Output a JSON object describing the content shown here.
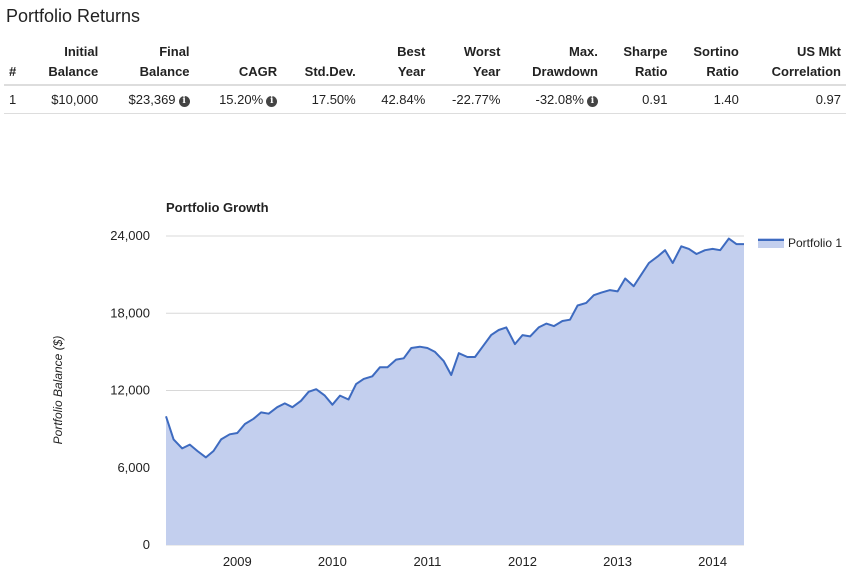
{
  "page_title": "Portfolio Returns",
  "table": {
    "headers": [
      [
        "#"
      ],
      [
        "Initial",
        "Balance"
      ],
      [
        "Final",
        "Balance"
      ],
      [
        "CAGR"
      ],
      [
        "Std.Dev."
      ],
      [
        "Best",
        "Year"
      ],
      [
        "Worst",
        "Year"
      ],
      [
        "Max.",
        "Drawdown"
      ],
      [
        "Sharpe",
        "Ratio"
      ],
      [
        "Sortino",
        "Ratio"
      ],
      [
        "US Mkt",
        "Correlation"
      ]
    ],
    "row": {
      "index": "1",
      "initial_balance": "$10,000",
      "final_balance": "$23,369",
      "cagr": "15.20%",
      "std_dev": "17.50%",
      "best_year": "42.84%",
      "worst_year": "-22.77%",
      "max_drawdown": "-32.08%",
      "sharpe_ratio": "0.91",
      "sortino_ratio": "1.40",
      "us_mkt_correlation": "0.97"
    },
    "info_icon": "info-circle-icon"
  },
  "chart_data": {
    "type": "area",
    "title": "Portfolio Growth",
    "xlabel": "",
    "ylabel": "Portfolio Balance ($)",
    "ylim": [
      0,
      24000
    ],
    "yticks": [
      "0",
      "6,000",
      "12,000",
      "18,000",
      "24,000"
    ],
    "xticks": [
      "2009",
      "2010",
      "2011",
      "2012",
      "2013",
      "2014"
    ],
    "xlim": [
      2008.75,
      2014.83
    ],
    "grid": true,
    "legend_position": "right",
    "fill_color": "#c3cfee",
    "line_color": "#3e6bc0",
    "series": [
      {
        "name": "Portfolio 1",
        "x": [
          2008.75,
          2008.83,
          2008.92,
          2009.0,
          2009.08,
          2009.17,
          2009.25,
          2009.33,
          2009.42,
          2009.5,
          2009.58,
          2009.67,
          2009.75,
          2009.83,
          2009.92,
          2010.0,
          2010.08,
          2010.17,
          2010.25,
          2010.33,
          2010.42,
          2010.5,
          2010.58,
          2010.67,
          2010.75,
          2010.83,
          2010.92,
          2011.0,
          2011.08,
          2011.17,
          2011.25,
          2011.33,
          2011.42,
          2011.5,
          2011.58,
          2011.67,
          2011.75,
          2011.83,
          2011.92,
          2012.0,
          2012.08,
          2012.17,
          2012.25,
          2012.33,
          2012.42,
          2012.5,
          2012.58,
          2012.67,
          2012.75,
          2012.83,
          2012.92,
          2013.0,
          2013.08,
          2013.17,
          2013.25,
          2013.33,
          2013.42,
          2013.5,
          2013.58,
          2013.67,
          2013.75,
          2013.83,
          2013.92,
          2014.0,
          2014.08,
          2014.17,
          2014.25,
          2014.33,
          2014.42,
          2014.5,
          2014.58,
          2014.67,
          2014.75,
          2014.83
        ],
        "values": [
          10000,
          8200,
          7500,
          7800,
          7300,
          6800,
          7300,
          8200,
          8600,
          8700,
          9400,
          9800,
          10300,
          10200,
          10700,
          11000,
          10700,
          11200,
          11900,
          12100,
          11600,
          10900,
          11600,
          11300,
          12500,
          12900,
          13100,
          13800,
          13800,
          14400,
          14500,
          15300,
          15400,
          15300,
          15000,
          14300,
          13200,
          14900,
          14600,
          14600,
          15400,
          16300,
          16700,
          16900,
          15600,
          16300,
          16200,
          16900,
          17200,
          17000,
          17400,
          17500,
          18600,
          18800,
          19400,
          19600,
          19800,
          19700,
          20700,
          20100,
          21000,
          21900,
          22400,
          22900,
          21900,
          23200,
          23000,
          22600,
          22900,
          23000,
          22900,
          23800,
          23369,
          23369
        ]
      }
    ]
  }
}
